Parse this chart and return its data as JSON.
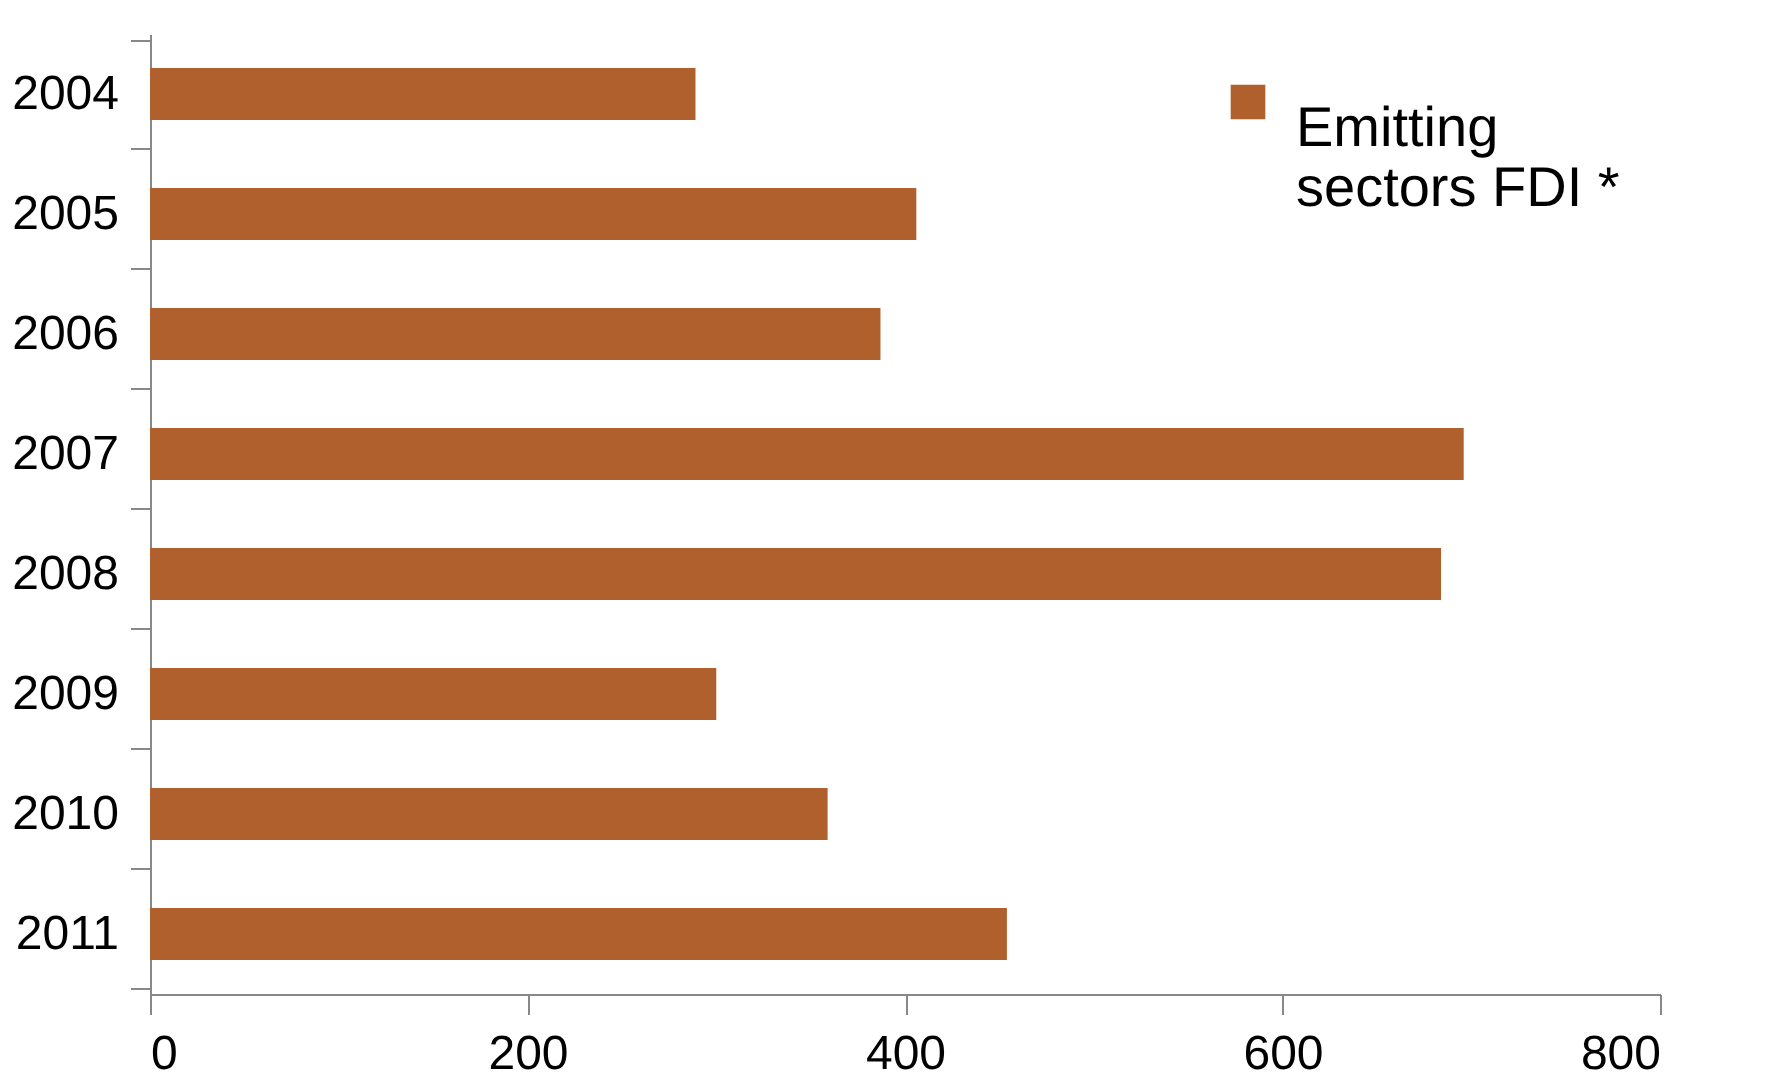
{
  "chart_data": {
    "type": "bar",
    "orientation": "horizontal",
    "categories": [
      "2004",
      "2005",
      "2006",
      "2007",
      "2008",
      "2009",
      "2010",
      "2011"
    ],
    "series": [
      {
        "name": "Emitting sectors FDI *",
        "color": "#b0602c",
        "values": [
          289,
          406,
          387,
          696,
          684,
          300,
          359,
          454
        ]
      }
    ],
    "xlim": [
      0,
      800
    ],
    "xticks": [
      0,
      200,
      400,
      600,
      800
    ],
    "grid": false,
    "legend": "top right"
  }
}
